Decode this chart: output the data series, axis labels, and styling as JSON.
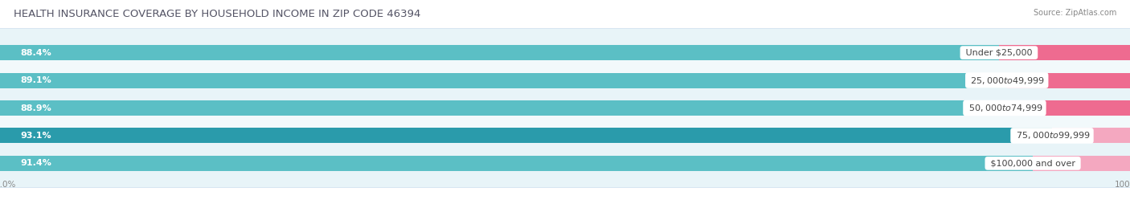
{
  "title": "HEALTH INSURANCE COVERAGE BY HOUSEHOLD INCOME IN ZIP CODE 46394",
  "source": "Source: ZipAtlas.com",
  "categories": [
    "Under $25,000",
    "$25,000 to $49,999",
    "$50,000 to $74,999",
    "$75,000 to $99,999",
    "$100,000 and over"
  ],
  "with_coverage": [
    88.4,
    89.1,
    88.9,
    93.1,
    91.4
  ],
  "without_coverage": [
    11.6,
    10.9,
    11.1,
    6.9,
    8.6
  ],
  "color_with_odd": "#5BC8C8",
  "color_with_even": "#3AABBB",
  "color_without_odd": "#F06090",
  "color_without_even": "#F9A0B8",
  "color_with": "#5BC8C8",
  "color_without": "#F06090",
  "bar_height": 0.55,
  "background_color": "#FFFFFF",
  "title_fontsize": 9.5,
  "label_fontsize": 8.0,
  "pct_fontsize": 8.0,
  "tick_fontsize": 7.5,
  "legend_fontsize": 8.0,
  "row_colors": [
    "#E8F4F8",
    "#F2F9FB",
    "#E8F4F8",
    "#F2F9FB",
    "#E8F4F8"
  ],
  "with_colors": [
    "#5BBFC5",
    "#5BBFC5",
    "#5BBFC5",
    "#2A9BAB",
    "#5BBFC5"
  ],
  "without_colors": [
    "#EE6B90",
    "#EE6B90",
    "#EE6B90",
    "#F4A8C0",
    "#F4A8C0"
  ]
}
